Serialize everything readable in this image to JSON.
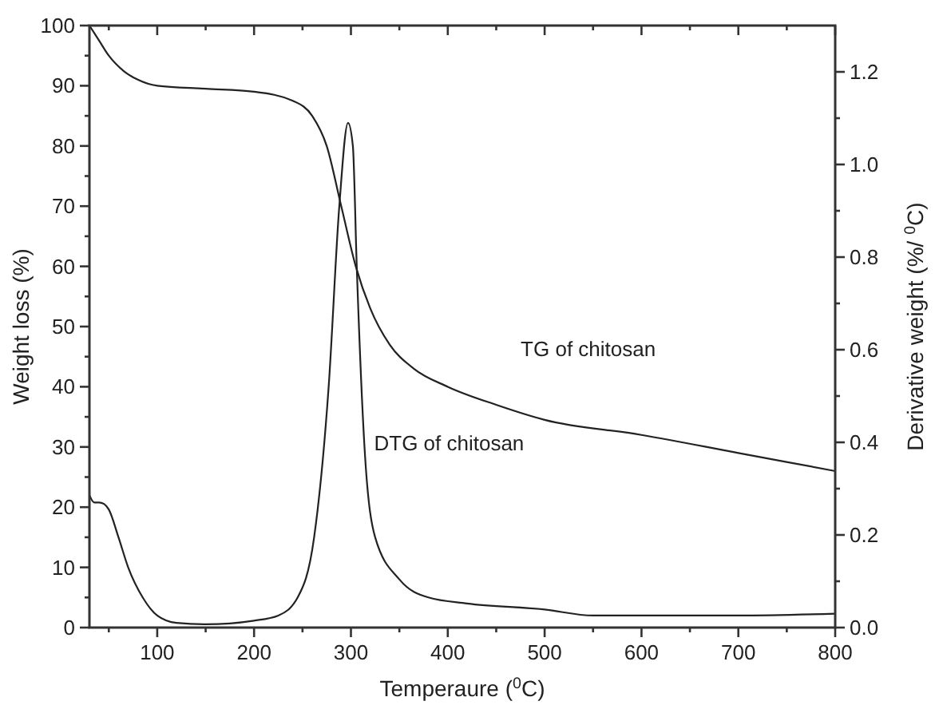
{
  "chart_data": {
    "type": "line",
    "xlabel": "Temperaure ($^{0}$C)",
    "ylabel": "Weight loss (%)",
    "y2label": "Derivative weight (%/ $^{0}$C)",
    "xlim": [
      30,
      800
    ],
    "xticks": [
      {
        "value": 50,
        "label": null
      },
      100,
      {
        "value": 150,
        "label": null
      },
      200,
      {
        "value": 250,
        "label": null
      },
      300,
      {
        "value": 350,
        "label": null
      },
      400,
      {
        "value": 450,
        "label": null
      },
      500,
      {
        "value": 550,
        "label": null
      },
      600,
      {
        "value": 650,
        "label": null
      },
      700,
      {
        "value": 750,
        "label": null
      },
      800
    ],
    "ylim": [
      0,
      100
    ],
    "yticks": [
      0,
      {
        "value": 5,
        "label": null
      },
      10,
      {
        "value": 15,
        "label": null
      },
      20,
      {
        "value": 25,
        "label": null
      },
      30,
      {
        "value": 35,
        "label": null
      },
      40,
      {
        "value": 45,
        "label": null
      },
      50,
      {
        "value": 55,
        "label": null
      },
      60,
      {
        "value": 65,
        "label": null
      },
      70,
      {
        "value": 75,
        "label": null
      },
      80,
      {
        "value": 85,
        "label": null
      },
      90,
      {
        "value": 95,
        "label": null
      },
      100
    ],
    "y2lim": [
      0,
      1.3
    ],
    "y2ticks": [
      "0.0",
      {
        "value": 0.1,
        "label": null
      },
      {
        "value": 0.2,
        "label": "0.2"
      },
      {
        "value": 0.3,
        "label": null
      },
      {
        "value": 0.4,
        "label": "0.4"
      },
      {
        "value": 0.5,
        "label": null
      },
      {
        "value": 0.6,
        "label": "0.6"
      },
      {
        "value": 0.7,
        "label": null
      },
      {
        "value": 0.8,
        "label": "0.8"
      },
      {
        "value": 0.9,
        "label": null
      },
      {
        "value": 1.0,
        "label": "1.0"
      },
      {
        "value": 1.1,
        "label": null
      },
      {
        "value": 1.2,
        "label": "1.2"
      }
    ],
    "grid": false,
    "legend": false,
    "marker": "none",
    "line_style": "solid",
    "series": [
      {
        "name": "TG of chitosan",
        "color": "#222222",
        "x": [
          30,
          40,
          50,
          65,
          80,
          100,
          150,
          200,
          240,
          260,
          275,
          290,
          305,
          320,
          340,
          365,
          400,
          450,
          500,
          600,
          700,
          800
        ],
        "values": [
          100,
          97.5,
          95,
          92.5,
          91,
          90,
          89.5,
          89,
          87.5,
          85,
          80,
          70,
          60,
          53,
          47,
          43,
          40,
          37,
          34.5,
          32,
          29,
          26
        ]
      },
      {
        "name": "DTG of chitosan",
        "axis": "y2",
        "color": "#222222",
        "x": [
          30,
          35,
          40,
          45,
          50,
          60,
          70,
          85,
          100,
          120,
          150,
          200,
          225,
          245,
          262,
          277,
          288,
          297,
          302,
          306,
          314,
          325,
          350,
          380,
          420,
          500,
          550,
          700,
          800
        ],
        "values": [
          0.286,
          0.27,
          0.27,
          0.267,
          0.255,
          0.195,
          0.13,
          0.065,
          0.026,
          0.01,
          0.007,
          0.015,
          0.026,
          0.065,
          0.195,
          0.52,
          0.91,
          1.09,
          1.04,
          0.78,
          0.39,
          0.195,
          0.104,
          0.065,
          0.052,
          0.039,
          0.026,
          0.026,
          0.03
        ]
      }
    ]
  }
}
